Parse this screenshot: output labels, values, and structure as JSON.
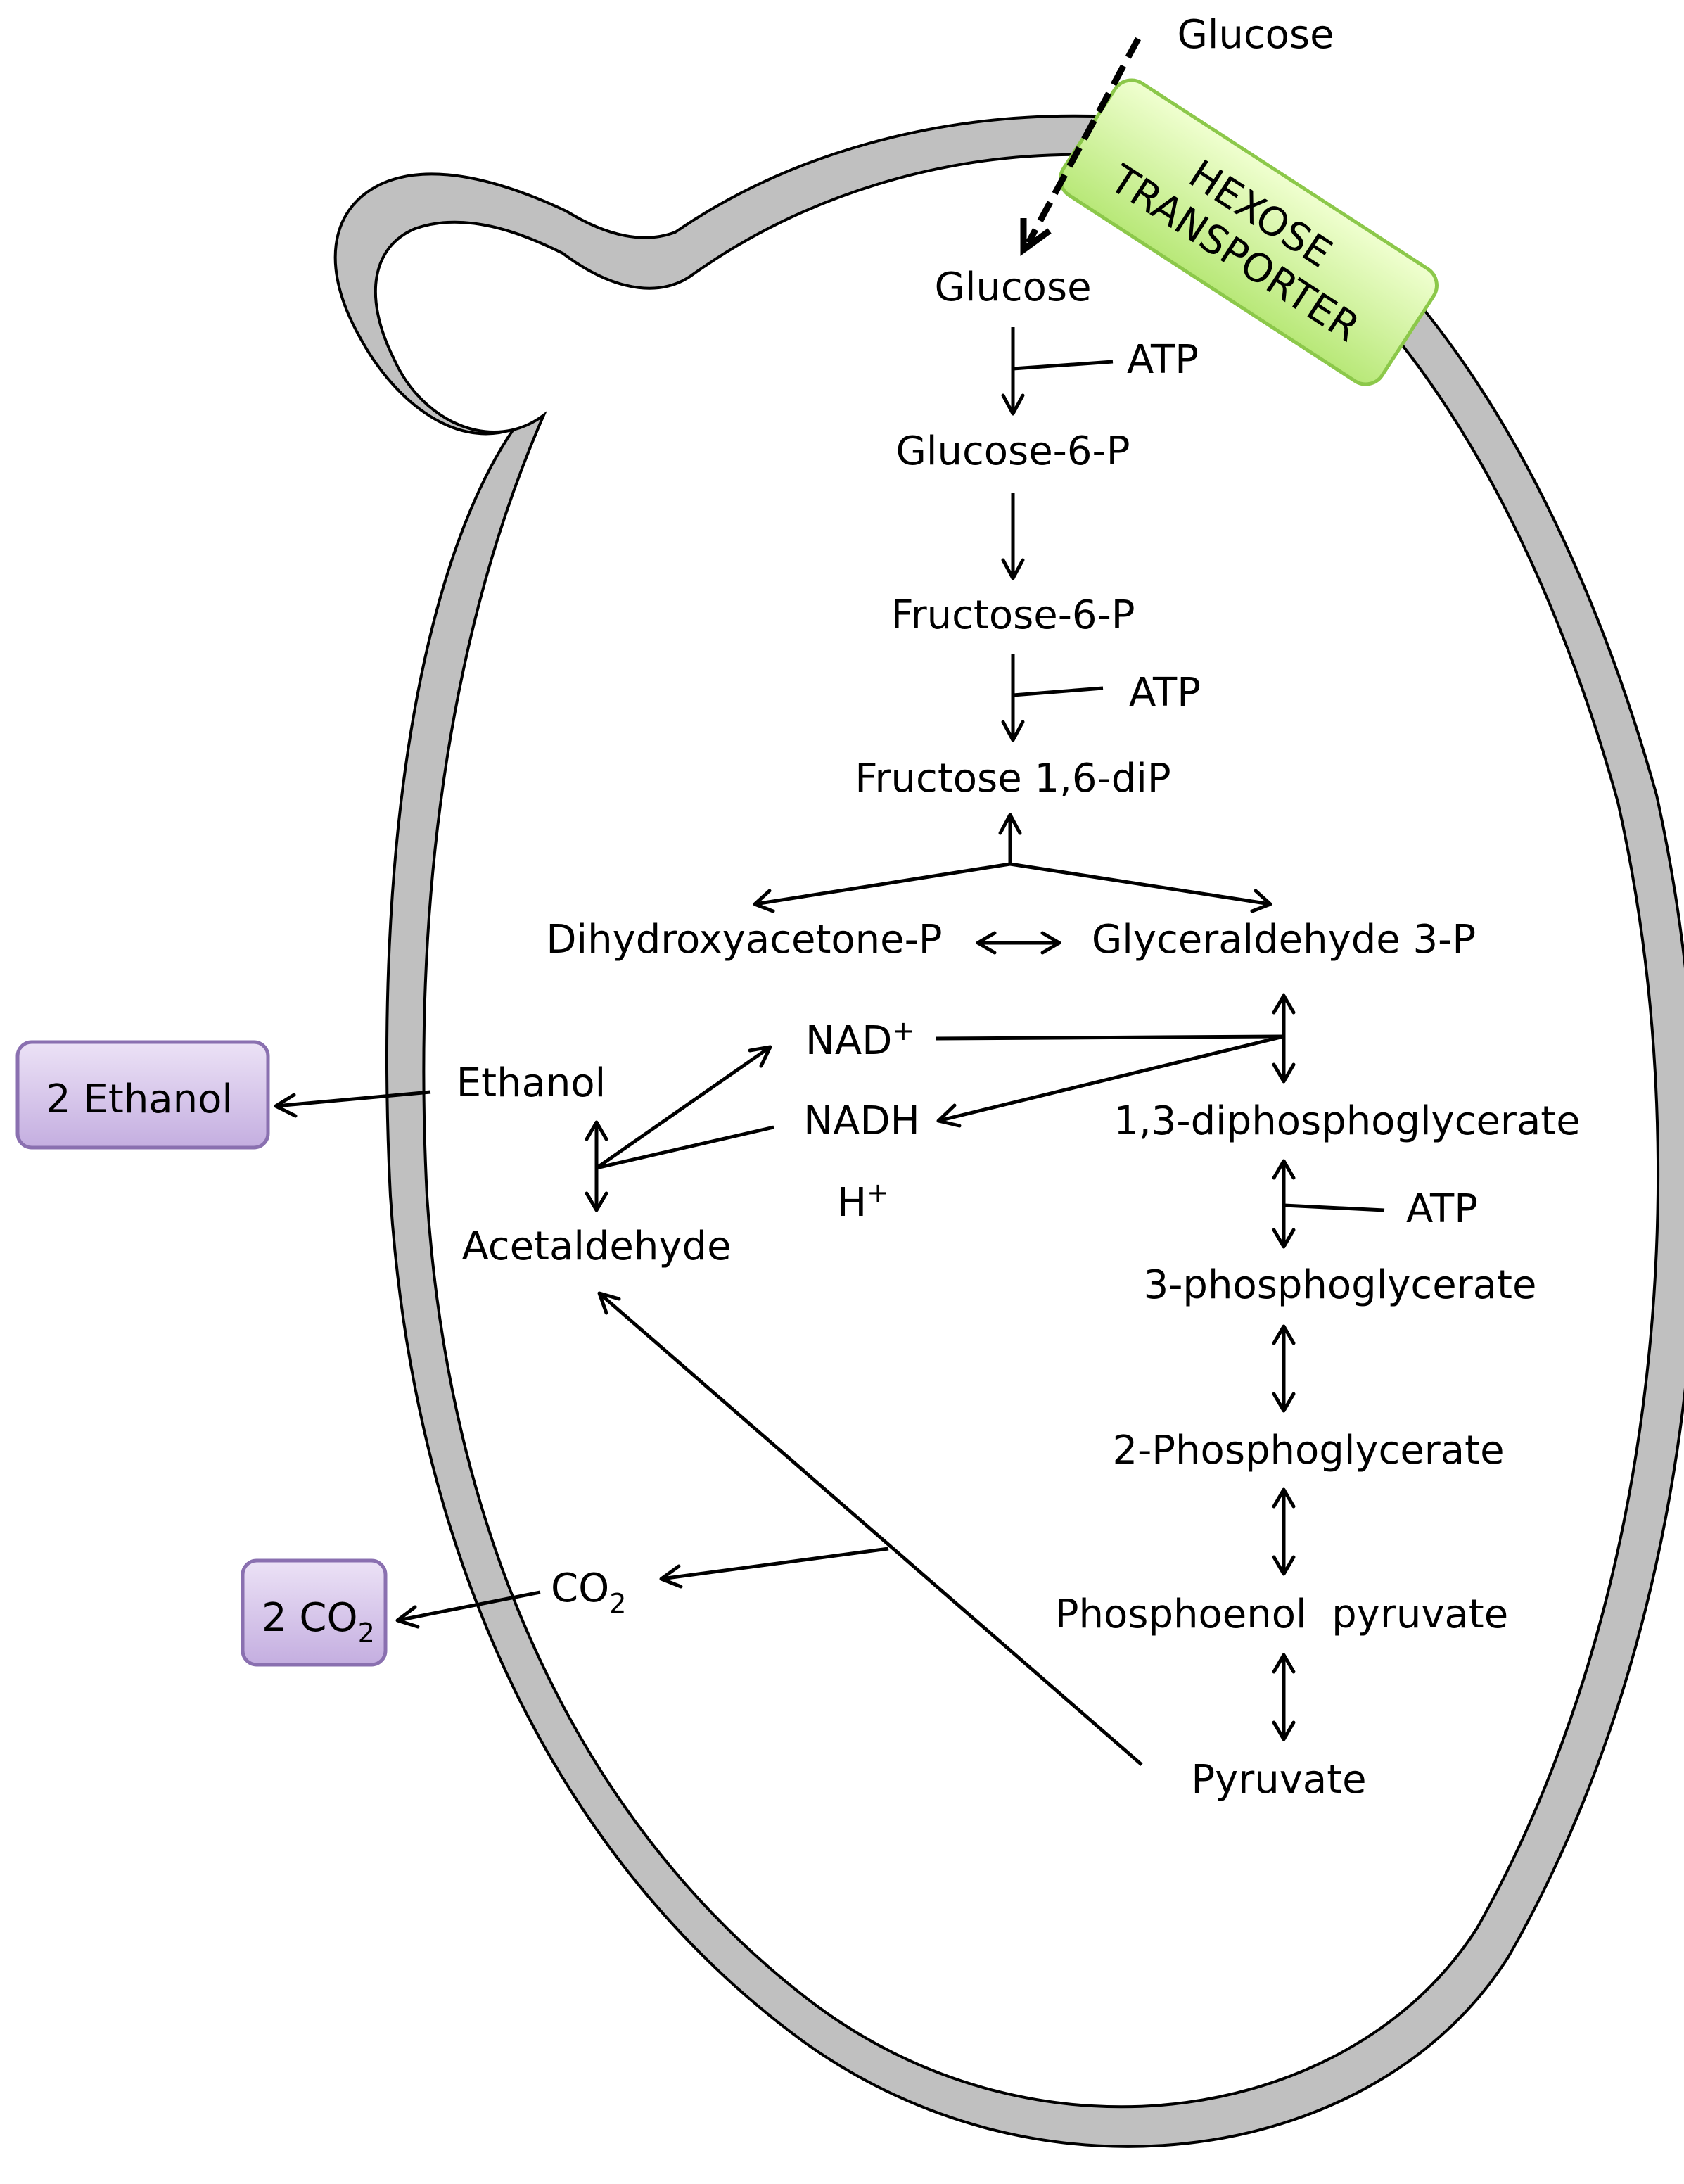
{
  "external": {
    "glucose_outside": "Glucose",
    "ethanol_box": "2 Ethanol",
    "co2_box_main": "2 CO",
    "co2_box_sub": "2"
  },
  "transporter": {
    "line1": "HEXOSE",
    "line2": "TRANSPORTER"
  },
  "pathway": {
    "glucose": "Glucose",
    "atp1": "ATP",
    "glucose_6p": "Glucose-6-P",
    "fructose_6p": "Fructose-6-P",
    "atp2": "ATP",
    "fructose_16dip": "Fructose 1,6-diP",
    "dhap": "Dihydroxyacetone-P",
    "g3p": "Glyceraldehyde 3-P",
    "nad_main": "NAD",
    "nad_sup": "+",
    "nadh": "NADH",
    "h_main": "H",
    "h_sup": "+",
    "bpg": "1,3-diphosphoglycerate",
    "atp3": "ATP",
    "pg3": "3-phosphoglycerate",
    "pg2": "2-Phosphoglycerate",
    "pep": "Phosphoenol  pyruvate",
    "pyruvate": "Pyruvate",
    "ethanol": "Ethanol",
    "acetaldehyde": "Acetaldehyde",
    "co2_main": "CO",
    "co2_sub": "2"
  },
  "colors": {
    "membrane": "#c0c0c0",
    "transporter_fill_top": "#f0ffd0",
    "transporter_fill_bottom": "#b8e878",
    "transporter_stroke": "#8cc84a",
    "product_fill_top": "#ece2f6",
    "product_fill_bottom": "#c4aee0",
    "product_stroke": "#8a70b0"
  }
}
